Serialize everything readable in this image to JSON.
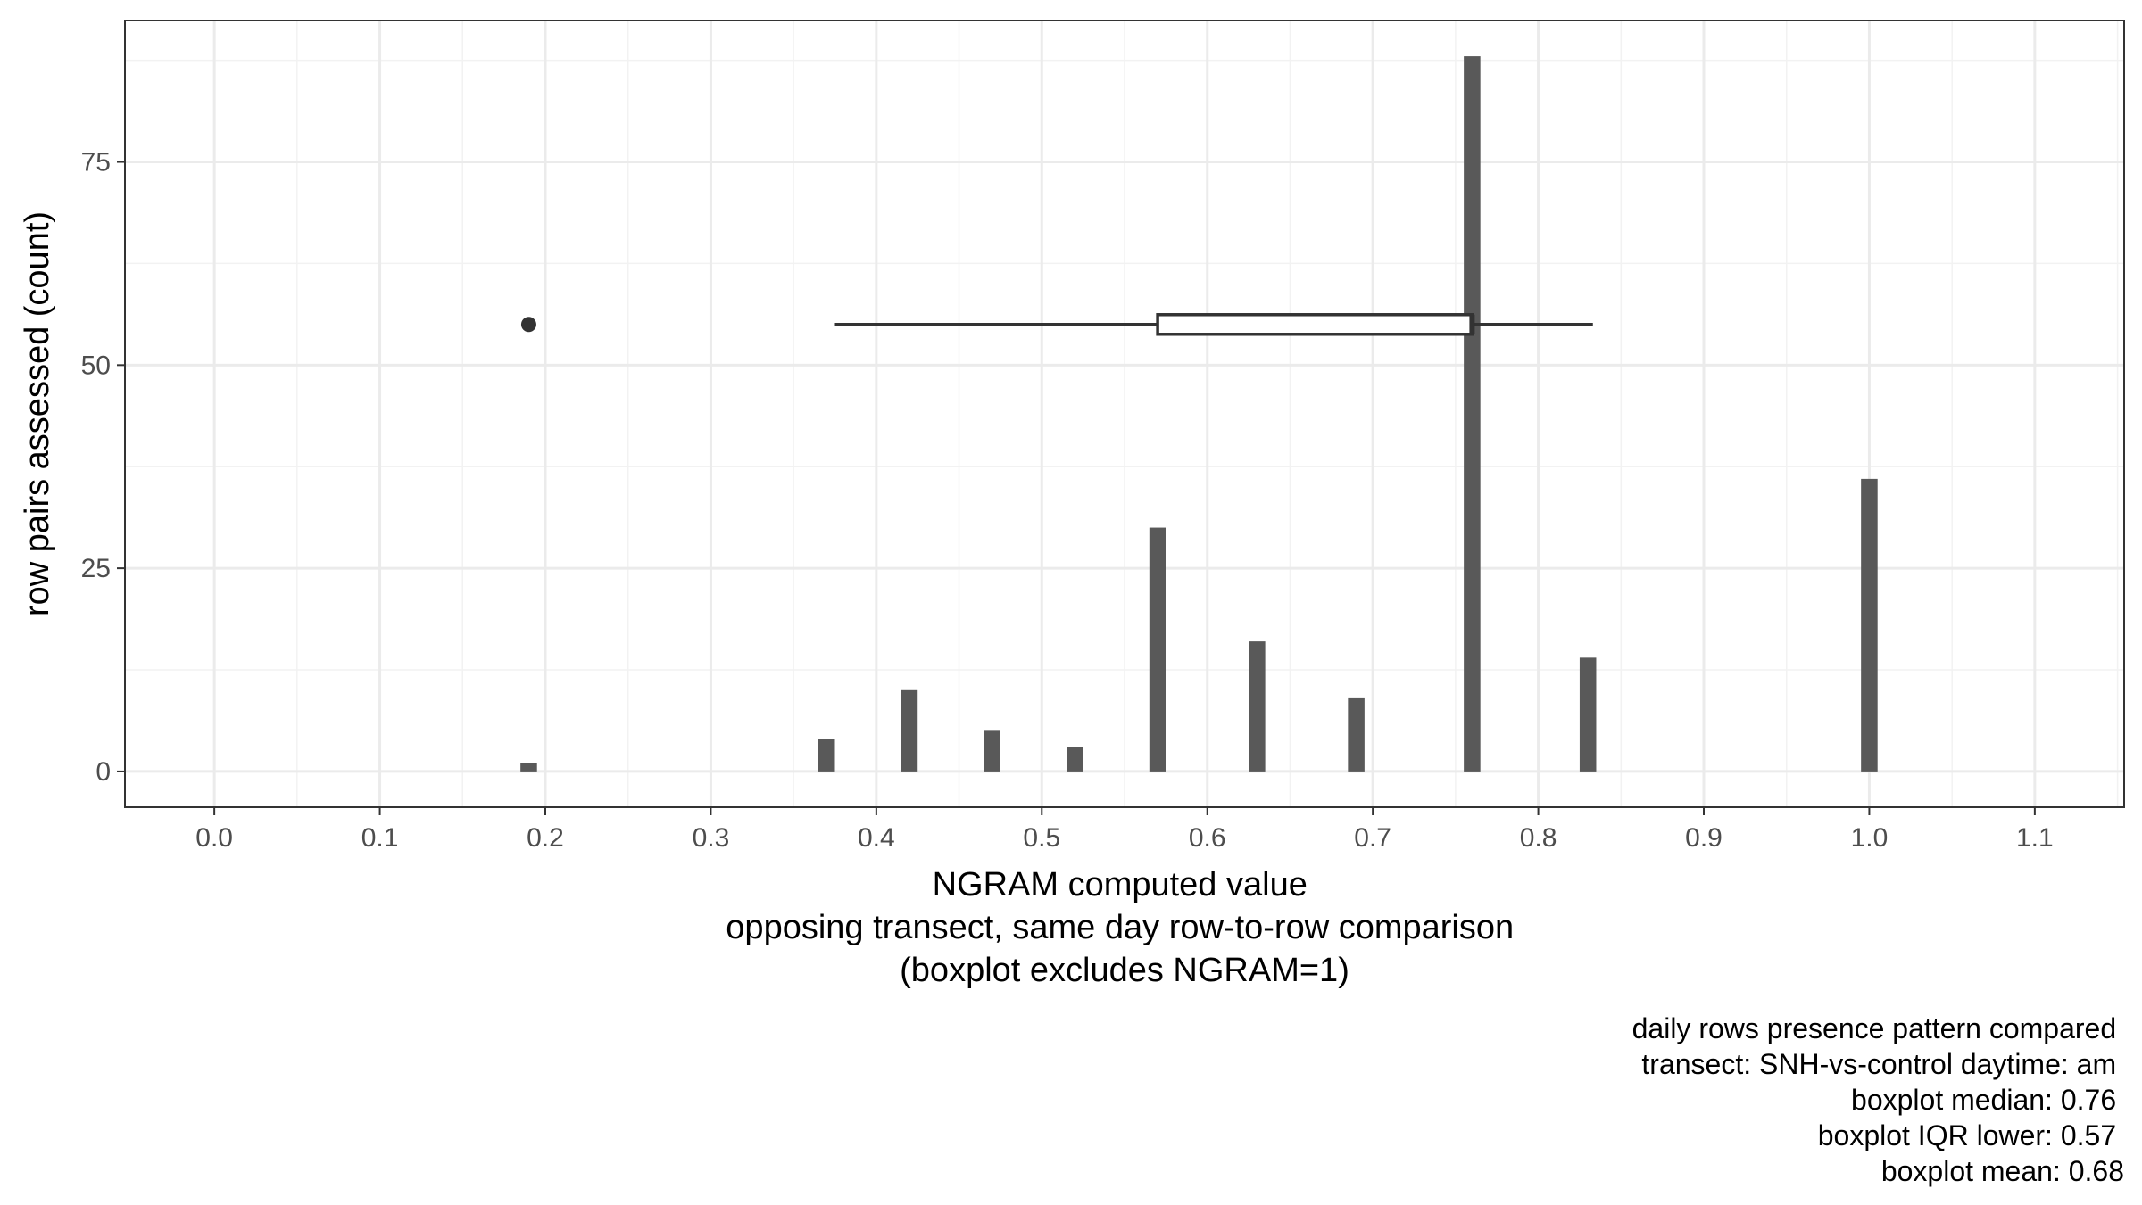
{
  "chart_data": {
    "type": "bar",
    "title": "",
    "xlabel_lines": [
      "NGRAM computed value",
      "opposing transect, same day row-to-row comparison",
      "(boxplot excludes NGRAM=1)"
    ],
    "ylabel": "row pairs assessed (count)",
    "xlim": [
      -0.054,
      1.154
    ],
    "ylim": [
      -4.4,
      92.4
    ],
    "x_ticks": [
      0.0,
      0.1,
      0.2,
      0.3,
      0.4,
      0.5,
      0.6,
      0.7,
      0.8,
      0.9,
      1.0,
      1.1
    ],
    "x_tick_labels": [
      "0.0",
      "0.1",
      "0.2",
      "0.3",
      "0.4",
      "0.5",
      "0.6",
      "0.7",
      "0.8",
      "0.9",
      "1.0",
      "1.1"
    ],
    "y_ticks": [
      0,
      25,
      50,
      75
    ],
    "y_tick_labels": [
      "0",
      "25",
      "50",
      "75"
    ],
    "grid": true,
    "bar_color": "#595959",
    "bar_width": 0.01,
    "bars": [
      {
        "x": 0.19,
        "count": 1
      },
      {
        "x": 0.37,
        "count": 4
      },
      {
        "x": 0.42,
        "count": 10
      },
      {
        "x": 0.47,
        "count": 5
      },
      {
        "x": 0.52,
        "count": 3
      },
      {
        "x": 0.57,
        "count": 30
      },
      {
        "x": 0.63,
        "count": 16
      },
      {
        "x": 0.69,
        "count": 9
      },
      {
        "x": 0.76,
        "count": 88
      },
      {
        "x": 0.83,
        "count": 14
      },
      {
        "x": 1.0,
        "count": 36
      }
    ],
    "boxplot": {
      "y": 55,
      "whisker_low": 0.375,
      "q1": 0.57,
      "median": 0.76,
      "q3": 0.76,
      "whisker_high": 0.833,
      "outliers": [
        0.19
      ]
    },
    "caption_lines": [
      "daily rows presence pattern compared",
      "transect: SNH-vs-control daytime: am",
      "boxplot median: 0.76",
      "boxplot IQR lower: 0.57",
      "boxplot mean: 0.68"
    ]
  }
}
